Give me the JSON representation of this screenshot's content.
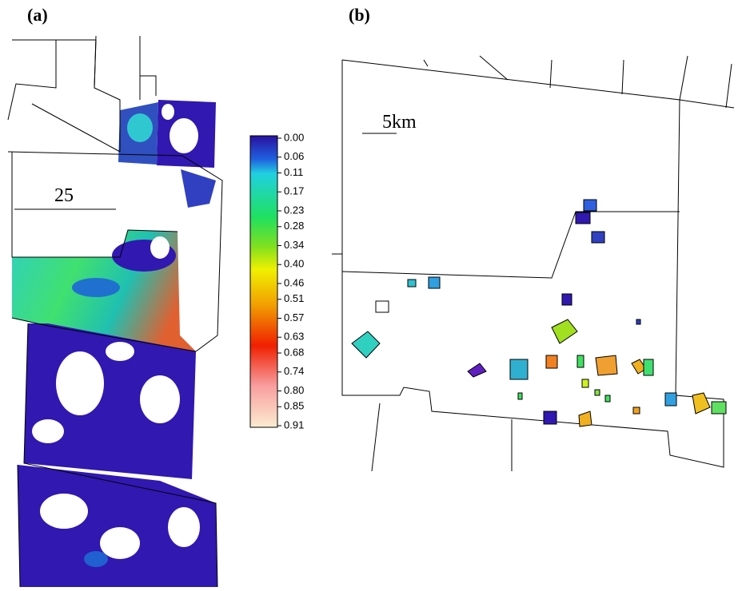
{
  "panels": [
    {
      "label": "(a)",
      "scale_label": "25"
    },
    {
      "label": "(b)",
      "scale_label": "5km"
    }
  ],
  "colorbar": {
    "ticks": [
      {
        "value": 0.0,
        "label": "0.00"
      },
      {
        "value": 0.06,
        "label": "0.06"
      },
      {
        "value": 0.11,
        "label": "0.11"
      },
      {
        "value": 0.17,
        "label": "0.17"
      },
      {
        "value": 0.23,
        "label": "0.23"
      },
      {
        "value": 0.28,
        "label": "0.28"
      },
      {
        "value": 0.34,
        "label": "0.34"
      },
      {
        "value": 0.4,
        "label": "0.40"
      },
      {
        "value": 0.46,
        "label": "0.46"
      },
      {
        "value": 0.51,
        "label": "0.51"
      },
      {
        "value": 0.57,
        "label": "0.57"
      },
      {
        "value": 0.63,
        "label": "0.63"
      },
      {
        "value": 0.68,
        "label": "0.68"
      },
      {
        "value": 0.74,
        "label": "0.74"
      },
      {
        "value": 0.8,
        "label": "0.80"
      },
      {
        "value": 0.85,
        "label": "0.85"
      },
      {
        "value": 0.91,
        "label": "0.91"
      }
    ]
  }
}
